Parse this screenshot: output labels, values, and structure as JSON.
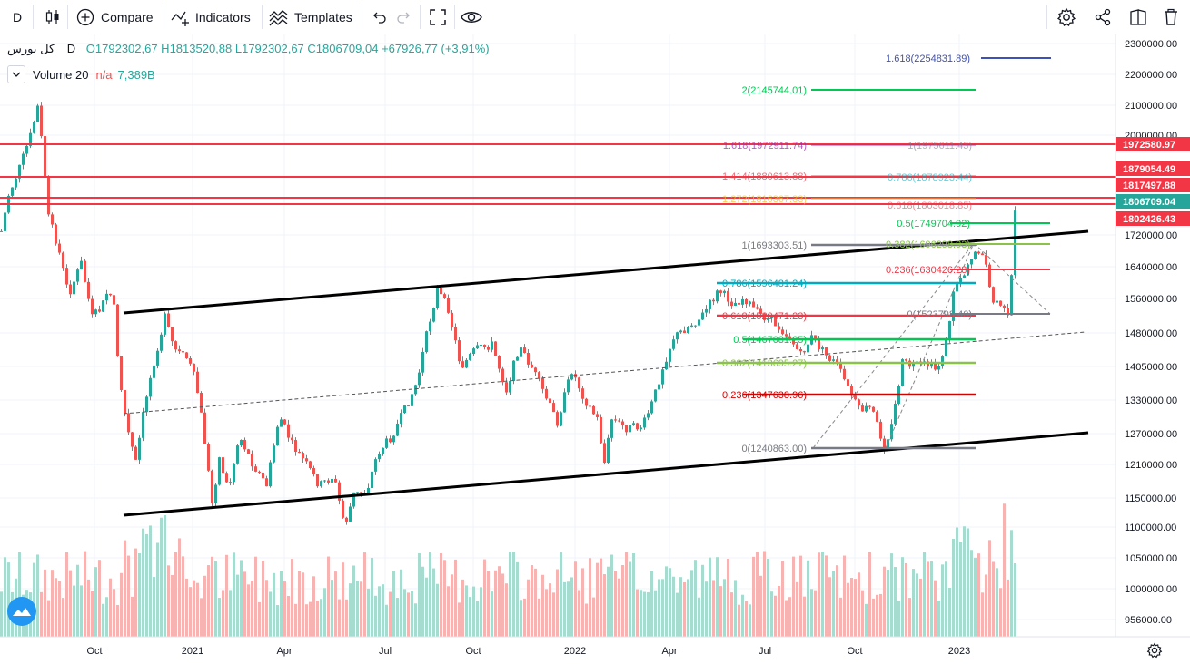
{
  "toolbar": {
    "interval": "D",
    "compare_label": "Compare",
    "indicators_label": "Indicators",
    "templates_label": "Templates"
  },
  "header": {
    "symbol": "کل بورس",
    "interval": "D",
    "ohlc": "O1792302,67  H1813520,88  L1792302,67  C1806709,04  +67926,77 (+3,91%)"
  },
  "volume": {
    "label": "Volume 20",
    "na": "n/a",
    "value": "7,389B"
  },
  "chart_data": {
    "type": "candlestick",
    "price_axis_ticks": [
      "2300000.00",
      "2200000.00",
      "2100000.00",
      "2000000.00",
      "1720000.00",
      "1640000.00",
      "1560000.00",
      "1480000.00",
      "1405000.00",
      "1330000.00",
      "1270000.00",
      "1210000.00",
      "1150000.00",
      "1100000.00",
      "1050000.00",
      "1000000.00",
      "956000.00"
    ],
    "time_axis_ticks": [
      "Oct",
      "2021",
      "Apr",
      "Jul",
      "Oct",
      "2022",
      "Apr",
      "Jul",
      "Oct",
      "2023"
    ],
    "price_labels": [
      {
        "text": "1972580.97",
        "color": "#f23645"
      },
      {
        "text": "1879054.49",
        "color": "#f23645"
      },
      {
        "text": "1817497.88",
        "color": "#f23645"
      },
      {
        "text": "1806709.04",
        "color": "#26a69a"
      },
      {
        "text": "1802426.43",
        "color": "#f23645"
      }
    ],
    "horizontal_levels": [
      "1972580.97",
      "1879054.49",
      "1817497.88",
      "1802426.43"
    ],
    "fib_retracement": [
      {
        "label": "1(1693303.51)",
        "color": "#787b86"
      },
      {
        "label": "0.786(1596481.24)",
        "color": "#00acc1"
      },
      {
        "label": "0.618(1520471.23)",
        "color": "#f23645"
      },
      {
        "label": "0.5(1467081.25)",
        "color": "#00c853"
      },
      {
        "label": "0.382(1413695.27)",
        "color": "#8bc34a"
      },
      {
        "label": "0.236(1347638.96)",
        "color": "#d50000"
      },
      {
        "label": "0(1240863.00)",
        "color": "#787b86"
      }
    ],
    "fib_extension": [
      {
        "label": "1.618(2254831.89)",
        "color": "#3f51b5"
      },
      {
        "label": "2(2145744.01)",
        "color": "#00c853"
      },
      {
        "label": "1.618(1972911.74)",
        "color": "#9c27b0"
      },
      {
        "label": "1.414(1880613.88)",
        "color": "#f23645"
      },
      {
        "label": "1.272(1816367.33)",
        "color": "#fbc02d"
      },
      {
        "label": "0.5(1749704.92)",
        "color": "#00c853"
      },
      {
        "label": "0.382(1696298.93)",
        "color": "#8bc34a"
      },
      {
        "label": "0.236(1630426.28)",
        "color": "#f23645"
      },
      {
        "label": "0(1523798.40)",
        "color": "#787b86"
      }
    ],
    "fib_right_faded": [
      {
        "label": "1(1975611.43)",
        "color": "#787b86"
      },
      {
        "label": "0.786(1878923.44)",
        "color": "#00acc1"
      },
      {
        "label": "0.618(1803018.85)",
        "color": "#f23645"
      }
    ],
    "colors": {
      "up": "#26a69a",
      "down": "#ef5350",
      "vol_up": "#a5dccf",
      "vol_down": "#f7b3b2"
    }
  }
}
